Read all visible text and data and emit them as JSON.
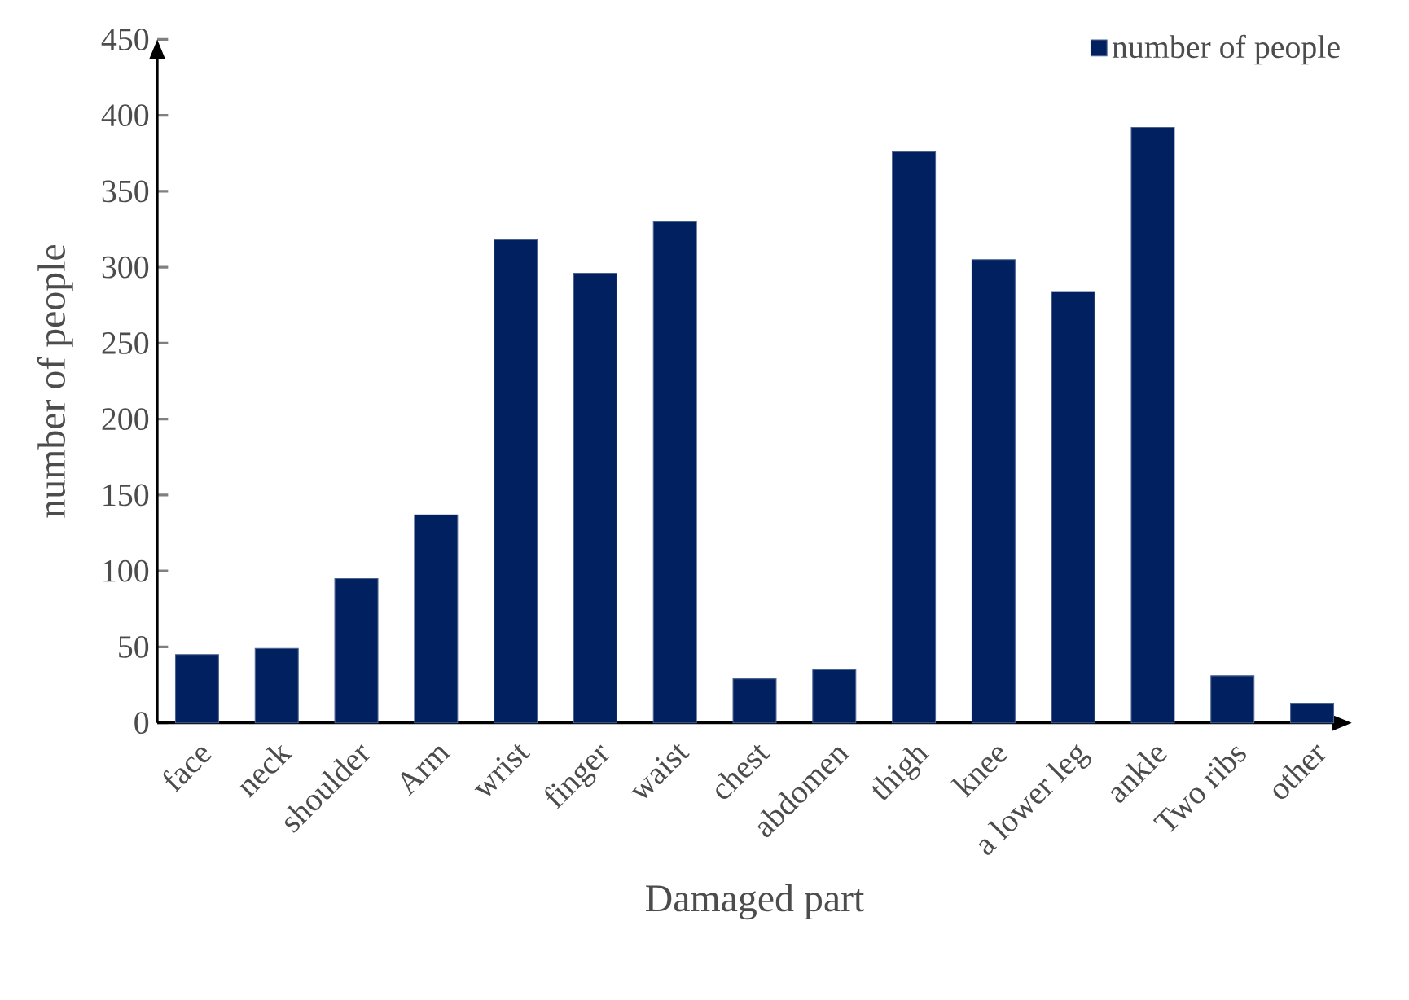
{
  "chart_data": {
    "type": "bar",
    "xlabel": "Damaged part",
    "ylabel": "number of people",
    "categories": [
      "face",
      "neck",
      "shoulder",
      "Arm",
      "wrist",
      "finger",
      "waist",
      "chest",
      "abdomen",
      "thigh",
      "knee",
      "a lower leg",
      "ankle",
      "Two ribs",
      "other"
    ],
    "series": [
      {
        "name": "number of people",
        "color": "#002060",
        "values": [
          45,
          49,
          95,
          137,
          318,
          296,
          330,
          29,
          35,
          376,
          305,
          284,
          392,
          31,
          13
        ]
      }
    ],
    "ylim": [
      0,
      450
    ],
    "yticks": [
      0,
      50,
      100,
      150,
      200,
      250,
      300,
      350,
      400,
      450
    ],
    "legend": "top right",
    "grid": false
  }
}
